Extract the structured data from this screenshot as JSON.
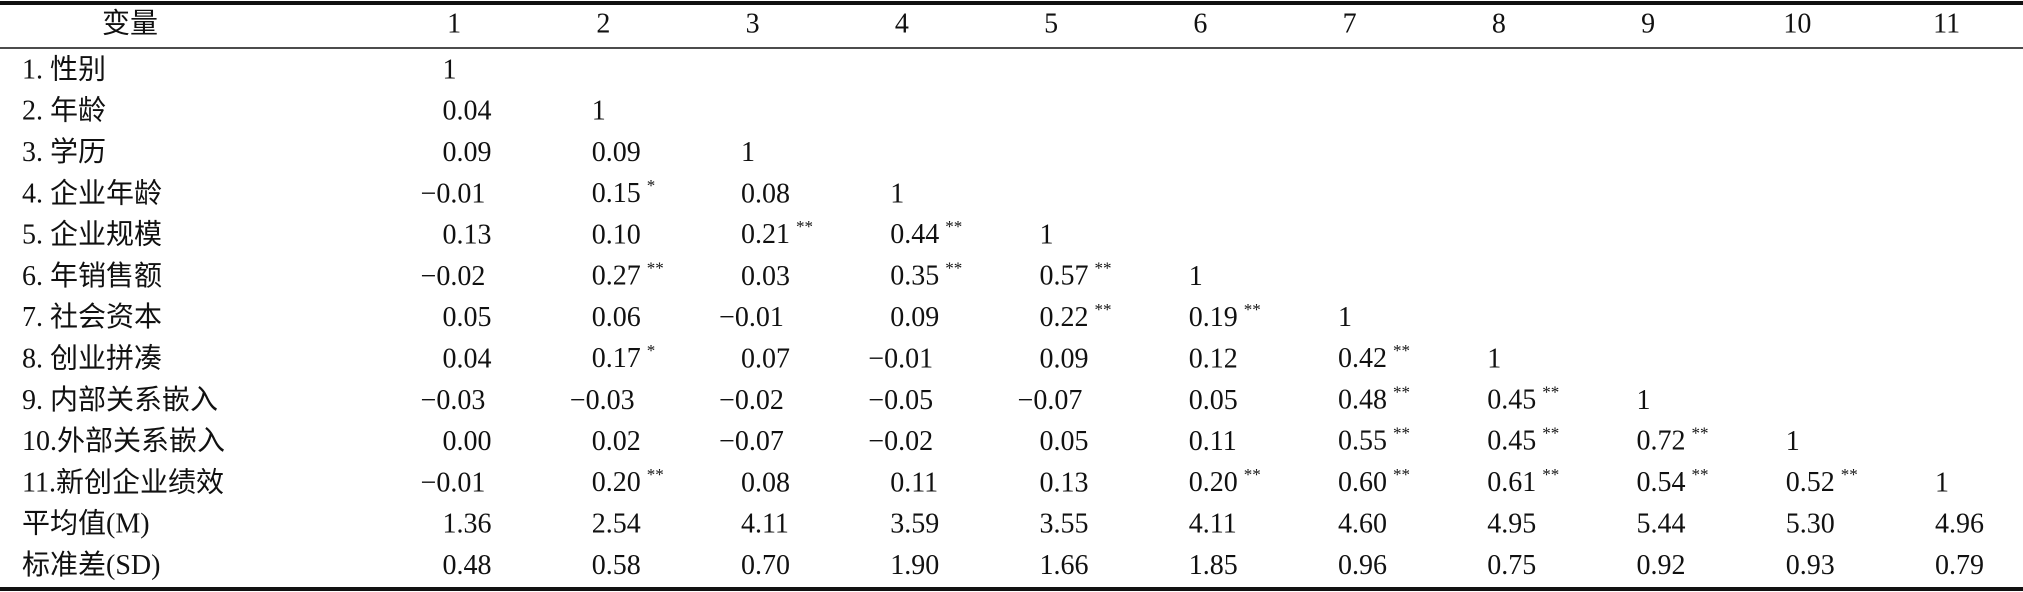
{
  "table": {
    "header": [
      "变量",
      "1",
      "2",
      "3",
      "4",
      "5",
      "6",
      "7",
      "8",
      "9",
      "10",
      "11"
    ],
    "rows": [
      {
        "label": "1. 性别",
        "cells": [
          "1"
        ]
      },
      {
        "label": "2. 年龄",
        "cells": [
          "0.04",
          "1"
        ]
      },
      {
        "label": "3. 学历",
        "cells": [
          "0.09",
          "0.09",
          "1"
        ]
      },
      {
        "label": "4. 企业年龄",
        "cells": [
          "−0.01",
          {
            "text": "0.15",
            "sig": "*"
          },
          "0.08",
          "1"
        ]
      },
      {
        "label": "5. 企业规模",
        "cells": [
          "0.13",
          "0.10",
          {
            "text": "0.21",
            "sig": "**"
          },
          {
            "text": "0.44",
            "sig": "**"
          },
          "1"
        ]
      },
      {
        "label": "6. 年销售额",
        "cells": [
          "−0.02",
          {
            "text": "0.27",
            "sig": "**"
          },
          "0.03",
          {
            "text": "0.35",
            "sig": "**"
          },
          {
            "text": "0.57",
            "sig": "**"
          },
          "1"
        ]
      },
      {
        "label": "7. 社会资本",
        "cells": [
          "0.05",
          "0.06",
          "−0.01",
          "0.09",
          {
            "text": "0.22",
            "sig": "**"
          },
          {
            "text": "0.19",
            "sig": "**"
          },
          "1"
        ]
      },
      {
        "label": "8. 创业拼凑",
        "cells": [
          "0.04",
          {
            "text": "0.17",
            "sig": "*"
          },
          "0.07",
          "−0.01",
          "0.09",
          "0.12",
          {
            "text": "0.42",
            "sig": "**"
          },
          "1"
        ]
      },
      {
        "label": "9. 内部关系嵌入",
        "cells": [
          "−0.03",
          "−0.03",
          "−0.02",
          "−0.05",
          "−0.07",
          "0.05",
          {
            "text": "0.48",
            "sig": "**"
          },
          {
            "text": "0.45",
            "sig": "**"
          },
          "1"
        ]
      },
      {
        "label": "10.外部关系嵌入",
        "cells": [
          "0.00",
          "0.02",
          "−0.07",
          "−0.02",
          "0.05",
          "0.11",
          {
            "text": "0.55",
            "sig": "**"
          },
          {
            "text": "0.45",
            "sig": "**"
          },
          {
            "text": "0.72",
            "sig": "**"
          },
          "1"
        ]
      },
      {
        "label": "11.新创企业绩效",
        "cells": [
          "−0.01",
          {
            "text": "0.20",
            "sig": "**"
          },
          "0.08",
          "0.11",
          "0.13",
          {
            "text": "0.20",
            "sig": "**"
          },
          {
            "text": "0.60",
            "sig": "**"
          },
          {
            "text": "0.61",
            "sig": "**"
          },
          {
            "text": "0.54",
            "sig": "**"
          },
          {
            "text": "0.52",
            "sig": "**"
          },
          "1"
        ]
      },
      {
        "label": "平均值(M)",
        "cells": [
          "1.36",
          "2.54",
          "4.11",
          "3.59",
          "3.55",
          "4.11",
          "4.60",
          "4.95",
          "5.44",
          "5.30",
          "4.96"
        ]
      },
      {
        "label": "标准差(SD)",
        "cells": [
          "0.48",
          "0.58",
          "0.70",
          "1.90",
          "1.66",
          "1.85",
          "0.96",
          "0.75",
          "0.92",
          "0.93",
          "0.79"
        ]
      }
    ]
  }
}
